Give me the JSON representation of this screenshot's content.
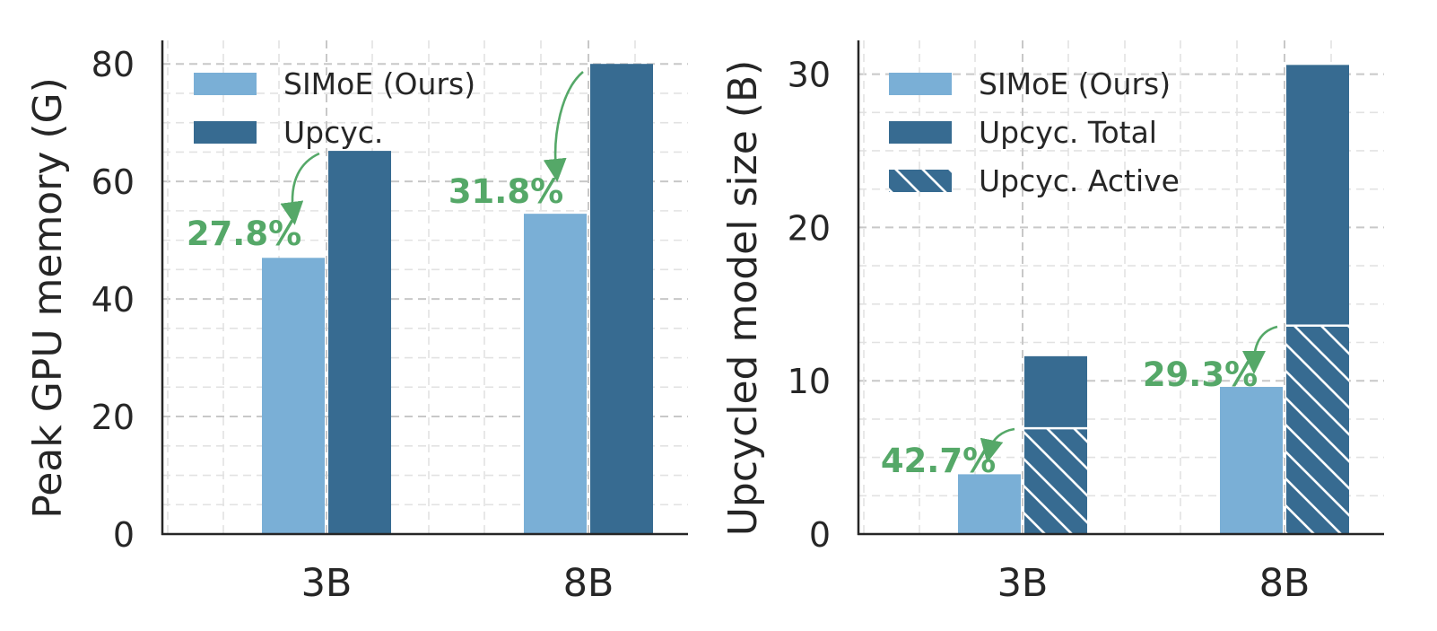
{
  "colors": {
    "simoe": "#7aafd6",
    "upcyc": "#376b91",
    "annotation": "#55a868",
    "axis": "#262626",
    "text": "#262626",
    "grid": "#cccccc"
  },
  "chart_data": [
    {
      "type": "bar",
      "categories": [
        "3B",
        "8B"
      ],
      "ylabel": "Peak GPU memory (G)",
      "ylim": [
        0,
        84
      ],
      "yticks": [
        "0",
        "20",
        "40",
        "60",
        "80"
      ],
      "grid": true,
      "legend_position": "top-left",
      "series": [
        {
          "name": "SIMoE (Ours)",
          "values": [
            47,
            54.5
          ]
        },
        {
          "name": "Upcyc.",
          "values": [
            65.2,
            80
          ]
        }
      ],
      "annotations": [
        "27.8%",
        "31.8%"
      ]
    },
    {
      "type": "bar",
      "categories": [
        "3B",
        "8B"
      ],
      "ylabel": "Upcycled model size (B)",
      "ylim": [
        0,
        32.2
      ],
      "yticks": [
        "0",
        "10",
        "20",
        "30"
      ],
      "grid": true,
      "legend_position": "top-left",
      "series": [
        {
          "name": "SIMoE (Ours)",
          "values": [
            3.9,
            9.6
          ]
        },
        {
          "name": "Upcyc. Total",
          "values": [
            11.6,
            30.6
          ]
        },
        {
          "name": "Upcyc. Active",
          "values": [
            6.9,
            13.6
          ]
        }
      ],
      "annotations": [
        "42.7%",
        "29.3%"
      ]
    }
  ]
}
